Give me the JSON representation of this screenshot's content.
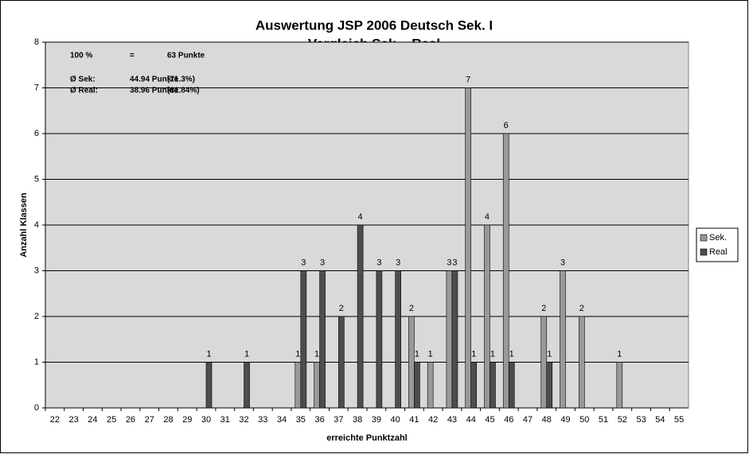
{
  "chart_data": {
    "type": "bar",
    "title": [
      "Auswertung JSP 2006 Deutsch Sek. I",
      "Vergleich Sek. - Real"
    ],
    "annotations": [
      [
        "100 %",
        "=",
        "63 Punkte"
      ],
      [
        "Ø Sek:",
        "44.94 Punkte",
        "(71.3%)"
      ],
      [
        "Ø Real:",
        "38.96 Punkte",
        "(61.84%)"
      ]
    ],
    "x_label": "erreichte Punktzahl",
    "y_label": "Anzahl Klassen",
    "categories": [
      "22",
      "23",
      "24",
      "25",
      "26",
      "27",
      "28",
      "29",
      "30",
      "31",
      "32",
      "33",
      "34",
      "35",
      "36",
      "37",
      "38",
      "39",
      "40",
      "41",
      "42",
      "43",
      "44",
      "45",
      "46",
      "47",
      "48",
      "49",
      "50",
      "51",
      "52",
      "53",
      "54",
      "55"
    ],
    "series": [
      {
        "name": "Sek.",
        "color": "#999999",
        "values": [
          null,
          null,
          null,
          null,
          null,
          null,
          null,
          null,
          null,
          null,
          null,
          null,
          null,
          1,
          1,
          null,
          null,
          null,
          null,
          2,
          1,
          3,
          7,
          4,
          6,
          null,
          2,
          3,
          2,
          null,
          1,
          null,
          null,
          null
        ]
      },
      {
        "name": "Real",
        "color": "#4d4d4d",
        "values": [
          null,
          null,
          null,
          null,
          null,
          null,
          null,
          null,
          1,
          null,
          1,
          null,
          null,
          3,
          3,
          2,
          4,
          3,
          3,
          1,
          null,
          3,
          1,
          1,
          1,
          null,
          1,
          null,
          null,
          null,
          null,
          null,
          null,
          null
        ]
      }
    ],
    "ylim": [
      0,
      8
    ],
    "yticks": [
      0,
      1,
      2,
      3,
      4,
      5,
      6,
      7,
      8
    ],
    "grid": true,
    "legend": "right"
  }
}
